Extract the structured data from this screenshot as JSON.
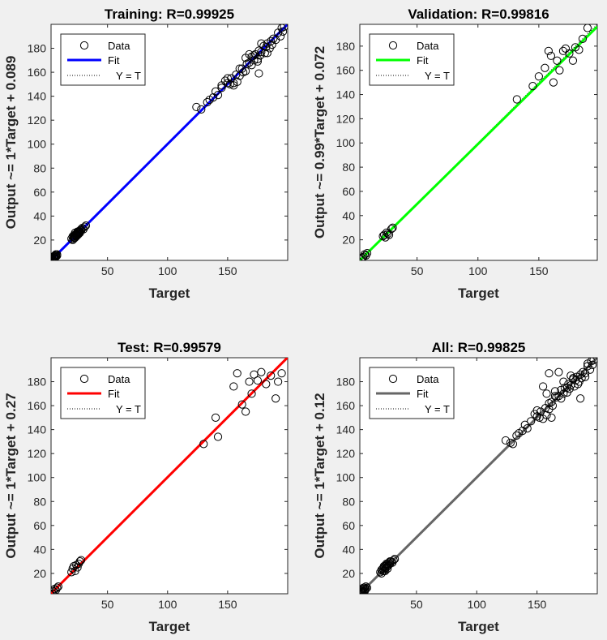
{
  "chart_data": [
    {
      "type": "scatter",
      "title": "Training: R=0.99925",
      "xlabel": "Target",
      "ylabel": "Output ~= 1*Target + 0.089",
      "xlim": [
        3,
        200
      ],
      "ylim": [
        3,
        200
      ],
      "xticks": [
        50,
        100,
        150
      ],
      "yticks": [
        20,
        40,
        60,
        80,
        100,
        120,
        140,
        160,
        180
      ],
      "fit": {
        "slope": 1.0,
        "intercept": 0.089,
        "color": "#0000ff"
      },
      "legend": {
        "entries": [
          "Data",
          "Fit",
          "Y = T"
        ],
        "position": "top-left"
      },
      "series": [
        {
          "x": [
            4,
            5,
            5,
            6,
            6,
            7,
            7,
            8,
            5,
            6,
            4,
            7,
            6,
            5,
            8,
            6,
            7,
            5,
            20,
            21,
            22,
            22,
            23,
            23,
            24,
            24,
            25,
            25,
            26,
            26,
            27,
            27,
            28,
            28,
            29,
            30,
            31,
            32,
            22,
            23,
            24,
            25,
            26,
            27,
            21,
            22,
            23,
            24,
            25,
            26,
            28,
            124,
            128,
            133,
            135,
            138,
            140,
            142,
            145,
            148,
            150,
            152,
            153,
            155,
            157,
            158,
            160,
            162,
            163,
            165,
            166,
            168,
            170,
            170,
            172,
            173,
            175,
            176,
            177,
            178,
            180,
            181,
            182,
            183,
            185,
            186,
            187,
            188,
            190,
            192,
            194,
            195,
            196,
            197,
            145,
            150,
            155,
            160,
            165,
            168,
            172,
            175,
            178,
            183,
            176
          ],
          "y": [
            4,
            5,
            6,
            5,
            7,
            6,
            8,
            7,
            6,
            4,
            5,
            7,
            6,
            5,
            8,
            6,
            7,
            5,
            21,
            20,
            22,
            23,
            22,
            24,
            24,
            25,
            25,
            26,
            26,
            27,
            27,
            28,
            29,
            28,
            30,
            29,
            31,
            32,
            24,
            22,
            25,
            24,
            27,
            26,
            23,
            21,
            26,
            23,
            27,
            25,
            28,
            131,
            129,
            135,
            137,
            139,
            144,
            141,
            147,
            153,
            151,
            150,
            155,
            149,
            158,
            152,
            157,
            163,
            160,
            172,
            167,
            168,
            173,
            166,
            170,
            175,
            171,
            178,
            174,
            177,
            182,
            176,
            181,
            184,
            180,
            186,
            183,
            188,
            187,
            193,
            190,
            197,
            194,
            198,
            149,
            155,
            151,
            163,
            161,
            175,
            174,
            169,
            184,
            176,
            159
          ]
        }
      ]
    },
    {
      "type": "scatter",
      "title": "Validation: R=0.99816",
      "xlabel": "Target",
      "ylabel": "Output ~= 0.99*Target + 0.072",
      "xlim": [
        3,
        198
      ],
      "ylim": [
        3,
        198
      ],
      "xticks": [
        50,
        100,
        150
      ],
      "yticks": [
        20,
        40,
        60,
        80,
        100,
        120,
        140,
        160,
        180
      ],
      "fit": {
        "slope": 0.99,
        "intercept": 0.072,
        "color": "#00ff00"
      },
      "legend": {
        "entries": [
          "Data",
          "Fit",
          "Y = T"
        ],
        "position": "top-left"
      },
      "series": [
        {
          "x": [
            4,
            5,
            6,
            7,
            8,
            9,
            22,
            23,
            24,
            25,
            26,
            27,
            29,
            30,
            132,
            145,
            150,
            155,
            158,
            160,
            162,
            165,
            167,
            170,
            172,
            175,
            178,
            180,
            183,
            186,
            190
          ],
          "y": [
            4,
            5,
            6,
            8,
            7,
            9,
            23,
            24,
            22,
            26,
            25,
            24,
            29,
            30,
            136,
            147,
            155,
            162,
            176,
            172,
            150,
            168,
            160,
            176,
            178,
            174,
            168,
            179,
            177,
            186,
            195
          ]
        }
      ]
    },
    {
      "type": "scatter",
      "title": "Test: R=0.99579",
      "xlabel": "Target",
      "ylabel": "Output ~= 1*Target + 0.27",
      "xlim": [
        3,
        200
      ],
      "ylim": [
        3,
        200
      ],
      "xticks": [
        50,
        100,
        150
      ],
      "yticks": [
        20,
        40,
        60,
        80,
        100,
        120,
        140,
        160,
        180
      ],
      "fit": {
        "slope": 1.0,
        "intercept": 0.27,
        "color": "#ff0000"
      },
      "legend": {
        "entries": [
          "Data",
          "Fit",
          "Y = T"
        ],
        "position": "top-left"
      },
      "series": [
        {
          "x": [
            4,
            5,
            6,
            7,
            8,
            9,
            20,
            21,
            22,
            23,
            24,
            25,
            26,
            27,
            28,
            130,
            140,
            142,
            155,
            158,
            162,
            165,
            168,
            170,
            172,
            175,
            178,
            182,
            186,
            190,
            192,
            195
          ],
          "y": [
            3,
            5,
            7,
            6,
            8,
            9,
            21,
            24,
            26,
            22,
            27,
            25,
            28,
            30,
            31,
            128,
            150,
            134,
            176,
            187,
            161,
            155,
            180,
            170,
            186,
            181,
            188,
            178,
            185,
            166,
            180,
            187
          ]
        }
      ]
    },
    {
      "type": "scatter",
      "title": "All: R=0.99825",
      "xlabel": "Target",
      "ylabel": "Output ~= 1*Target + 0.12",
      "xlim": [
        3,
        200
      ],
      "ylim": [
        3,
        200
      ],
      "xticks": [
        50,
        100,
        150
      ],
      "yticks": [
        20,
        40,
        60,
        80,
        100,
        120,
        140,
        160,
        180
      ],
      "fit": {
        "slope": 1.0,
        "intercept": 0.12,
        "color": "#666666"
      },
      "legend": {
        "entries": [
          "Data",
          "Fit",
          "Y = T"
        ],
        "position": "top-left"
      },
      "series": [
        {
          "x": [
            3,
            4,
            5,
            5,
            6,
            6,
            7,
            7,
            8,
            8,
            9,
            5,
            6,
            7,
            4,
            20,
            21,
            21,
            22,
            22,
            23,
            23,
            24,
            24,
            25,
            25,
            26,
            26,
            27,
            27,
            28,
            28,
            29,
            30,
            31,
            32,
            23,
            24,
            25,
            26,
            124,
            128,
            130,
            133,
            135,
            138,
            140,
            142,
            145,
            148,
            150,
            152,
            153,
            155,
            157,
            158,
            160,
            160,
            162,
            163,
            165,
            166,
            168,
            170,
            170,
            172,
            173,
            175,
            176,
            177,
            178,
            180,
            181,
            182,
            183,
            185,
            186,
            187,
            188,
            190,
            192,
            194,
            195,
            196,
            197,
            150,
            155,
            158,
            160,
            162,
            165,
            168,
            172,
            175,
            178,
            180,
            184,
            186,
            190,
            192
          ],
          "y": [
            3,
            4,
            5,
            6,
            5,
            7,
            6,
            8,
            7,
            9,
            8,
            4,
            8,
            5,
            6,
            21,
            20,
            23,
            22,
            24,
            22,
            25,
            24,
            26,
            25,
            27,
            26,
            28,
            27,
            29,
            28,
            30,
            30,
            29,
            31,
            32,
            26,
            22,
            28,
            24,
            131,
            129,
            128,
            135,
            137,
            139,
            144,
            141,
            147,
            153,
            151,
            150,
            155,
            149,
            158,
            152,
            157,
            187,
            163,
            160,
            172,
            167,
            168,
            173,
            166,
            170,
            175,
            171,
            178,
            174,
            177,
            182,
            176,
            181,
            184,
            180,
            186,
            183,
            188,
            187,
            193,
            190,
            197,
            194,
            198,
            156,
            176,
            170,
            162,
            150,
            168,
            188,
            180,
            175,
            185,
            183,
            178,
            166,
            184,
            195
          ]
        }
      ]
    }
  ]
}
